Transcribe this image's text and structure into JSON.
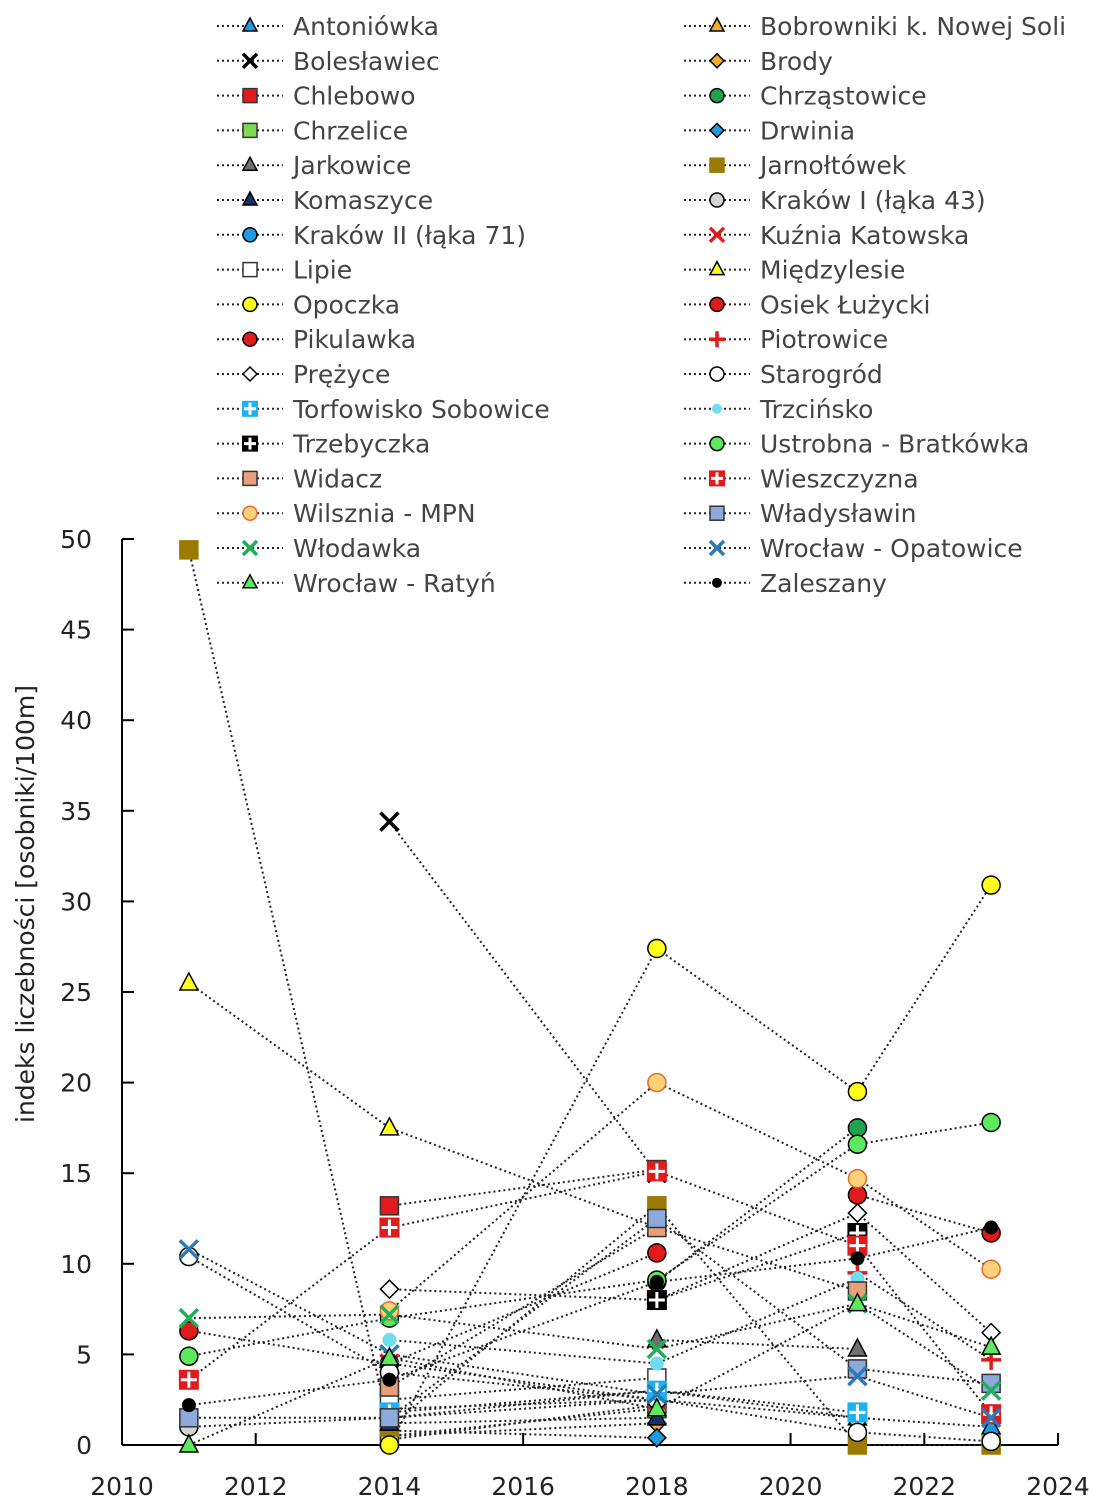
{
  "chart_data": {
    "type": "line",
    "title": "",
    "xlabel": "",
    "ylabel": "indeks liczebności [osobniki/100m]",
    "xlim": [
      2010,
      2024
    ],
    "ylim": [
      0,
      50
    ],
    "x_ticks": [
      2010,
      2012,
      2014,
      2016,
      2018,
      2020,
      2022,
      2024
    ],
    "y_ticks": [
      0,
      5,
      10,
      15,
      20,
      25,
      30,
      35,
      40,
      45,
      50
    ],
    "grid": false,
    "legend_position": "top",
    "series": [
      {
        "name": "Antoniówka",
        "marker": "triangle",
        "color": "#1f9be0",
        "x": [
          2014,
          2018,
          2021,
          2023
        ],
        "y": [
          1.5,
          2.5,
          1.5,
          1.0
        ]
      },
      {
        "name": "Bobrowniki k. Nowej Soli",
        "marker": "triangle",
        "color": "#f0ad2a",
        "x": [
          2014,
          2018
        ],
        "y": [
          0.3,
          2.2
        ]
      },
      {
        "name": "Bolesławiec",
        "marker": "x",
        "color": "#000000",
        "x": [
          2014,
          2018
        ],
        "y": [
          34.4,
          15.0
        ]
      },
      {
        "name": "Brody",
        "marker": "diamond",
        "color": "#f0ad2a",
        "x": [
          2014,
          2018
        ],
        "y": [
          0.5,
          1.2
        ]
      },
      {
        "name": "Chlebowo",
        "marker": "square",
        "color": "#e11b1b",
        "x": [
          2014,
          2018
        ],
        "y": [
          13.2,
          15.2
        ]
      },
      {
        "name": "Chrząstowice",
        "marker": "circle",
        "color": "#1fa34a",
        "x": [
          2018,
          2021
        ],
        "y": [
          9.0,
          17.5
        ]
      },
      {
        "name": "Chrzelice",
        "marker": "square",
        "color": "#7ed957",
        "x": [
          2014,
          2018
        ],
        "y": [
          0.5,
          2.0
        ]
      },
      {
        "name": "Drwinia",
        "marker": "diamond",
        "color": "#1f9be0",
        "x": [
          2014,
          2018
        ],
        "y": [
          0.8,
          0.4
        ]
      },
      {
        "name": "Jarkowice",
        "marker": "triangle",
        "color": "#6f6f6f",
        "x": [
          2018,
          2021
        ],
        "y": [
          5.8,
          5.3
        ]
      },
      {
        "name": "Jarnołtówek",
        "marker": "square",
        "color": "#9a7a00",
        "x": [
          2011,
          2014,
          2018,
          2021,
          2023
        ],
        "y": [
          49.4,
          1.0,
          13.2,
          0.0,
          0.0
        ]
      },
      {
        "name": "Komaszyce",
        "marker": "triangle",
        "color": "#15306b",
        "x": [
          2014,
          2018
        ],
        "y": [
          1.2,
          1.5
        ]
      },
      {
        "name": "Kraków I (łąka 43)",
        "marker": "circle",
        "color": "#d4d4d4",
        "x": [
          2011,
          2014,
          2018,
          2021
        ],
        "y": [
          1.0,
          1.5,
          3.0,
          1.5
        ]
      },
      {
        "name": "Kraków II (łąka 71)",
        "marker": "circle",
        "color": "#1f9be0",
        "x": [
          2014,
          2018
        ],
        "y": [
          2.0,
          2.5
        ]
      },
      {
        "name": "Kuźnia Katowska",
        "marker": "x",
        "color": "#e11b1b",
        "x": [
          2014,
          2018
        ],
        "y": [
          4.5,
          2.5
        ]
      },
      {
        "name": "Lipie",
        "marker": "square",
        "color": "#ffffff",
        "x": [
          2014,
          2018
        ],
        "y": [
          2.5,
          3.7
        ]
      },
      {
        "name": "Międzylesie",
        "marker": "triangle",
        "color": "#ffff1a",
        "x": [
          2011,
          2014,
          2018
        ],
        "y": [
          25.5,
          17.5,
          12.0
        ]
      },
      {
        "name": "Opoczka",
        "marker": "circle",
        "color": "#ffff1a",
        "x": [
          2014,
          2018,
          2021,
          2023
        ],
        "y": [
          0.0,
          27.4,
          19.5,
          30.9
        ]
      },
      {
        "name": "Osiek Łużycki",
        "marker": "circle",
        "color": "#e11b1b",
        "x": [
          2011,
          2014,
          2018
        ],
        "y": [
          6.3,
          4.5,
          10.6
        ]
      },
      {
        "name": "Pikulawka",
        "marker": "circle",
        "color": "#e11b1b",
        "x": [
          2021,
          2023
        ],
        "y": [
          13.8,
          11.7
        ]
      },
      {
        "name": "Piotrowice",
        "marker": "plus",
        "color": "#e11b1b",
        "x": [
          2021,
          2023
        ],
        "y": [
          9.5,
          4.7
        ]
      },
      {
        "name": "Prężyce",
        "marker": "diamond",
        "color": "#ffffff",
        "x": [
          2014,
          2018,
          2021,
          2023
        ],
        "y": [
          8.6,
          8.0,
          12.8,
          6.2
        ]
      },
      {
        "name": "Starogród",
        "marker": "circle",
        "color": "#ffffff",
        "x": [
          2011,
          2014,
          2018,
          2021,
          2023
        ],
        "y": [
          10.4,
          4.0,
          2.5,
          0.7,
          0.2
        ]
      },
      {
        "name": "Torfowisko Sobowice",
        "marker": "plussquare",
        "color": "#1fb0f0",
        "x": [
          2014,
          2018,
          2021
        ],
        "y": [
          1.8,
          3.0,
          1.8
        ]
      },
      {
        "name": "Trzcińsko",
        "marker": "smallcircle",
        "color": "#6fdcf0",
        "x": [
          2014,
          2018,
          2021
        ],
        "y": [
          5.8,
          4.5,
          9.2
        ]
      },
      {
        "name": "Trzebyczka",
        "marker": "plussquare",
        "color": "#000000",
        "x": [
          2018,
          2021
        ],
        "y": [
          8.0,
          11.7
        ]
      },
      {
        "name": "Ustrobna - Bratkówka",
        "marker": "circle",
        "color": "#5ee85e",
        "x": [
          2011,
          2014,
          2018,
          2021,
          2023
        ],
        "y": [
          4.9,
          7.0,
          9.1,
          16.6,
          17.8
        ]
      },
      {
        "name": "Widacz",
        "marker": "square",
        "color": "#e8a07a",
        "x": [
          2014,
          2018,
          2021
        ],
        "y": [
          3.2,
          12.0,
          8.5
        ]
      },
      {
        "name": "Wieszczyzna",
        "marker": "plussquare",
        "color": "#e11b1b",
        "x": [
          2011,
          2014,
          2018,
          2021,
          2023
        ],
        "y": [
          3.6,
          12.0,
          15.1,
          11.0,
          1.7
        ]
      },
      {
        "name": "Wilsznia - MPN",
        "marker": "circle",
        "color": "#ffd27a",
        "x": [
          2014,
          2018,
          2021,
          2023
        ],
        "y": [
          7.4,
          20.0,
          14.7,
          9.7
        ]
      },
      {
        "name": "Władysławin",
        "marker": "square",
        "color": "#8ea9db",
        "x": [
          2011,
          2014,
          2018,
          2021,
          2023
        ],
        "y": [
          1.5,
          1.5,
          12.5,
          4.2,
          3.4
        ]
      },
      {
        "name": "Włodawka",
        "marker": "x",
        "color": "#1fb05a",
        "x": [
          2011,
          2014,
          2018,
          2021,
          2023
        ],
        "y": [
          7.0,
          7.2,
          5.3,
          7.8,
          3.0
        ]
      },
      {
        "name": "Wrocław - Opatowice",
        "marker": "x",
        "color": "#2a7ab8",
        "x": [
          2011,
          2014,
          2018,
          2021,
          2023
        ],
        "y": [
          10.8,
          5.0,
          2.8,
          3.8,
          1.5
        ]
      },
      {
        "name": "Wrocław - Ratyń",
        "marker": "triangle",
        "color": "#5ee85e",
        "x": [
          2011,
          2014,
          2018,
          2021,
          2023
        ],
        "y": [
          0.0,
          4.8,
          2.0,
          7.8,
          5.4
        ]
      },
      {
        "name": "Zaleszany",
        "marker": "smallcircle",
        "color": "#000000",
        "x": [
          2011,
          2014,
          2018,
          2021,
          2023
        ],
        "y": [
          2.2,
          3.6,
          9.0,
          10.3,
          12.0
        ]
      }
    ]
  }
}
